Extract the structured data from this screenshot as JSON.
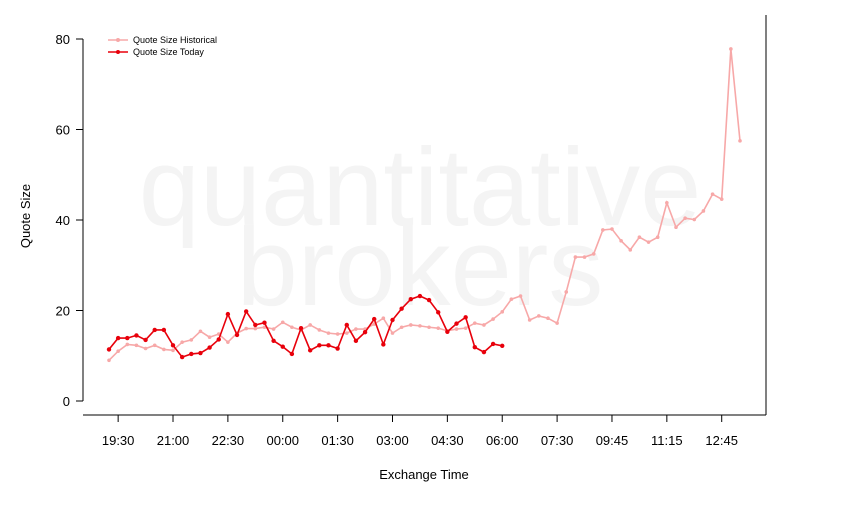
{
  "chart_data": {
    "type": "line",
    "watermark": [
      "quantitative",
      "brokers"
    ],
    "x_label": "Exchange Time",
    "y_label": "Quote Size",
    "categories": [
      null,
      "19:30",
      null,
      null,
      null,
      null,
      null,
      "21:00",
      null,
      null,
      null,
      null,
      null,
      "22:30",
      null,
      null,
      null,
      null,
      null,
      "00:00",
      null,
      null,
      null,
      null,
      null,
      "01:30",
      null,
      null,
      null,
      null,
      null,
      "03:00",
      null,
      null,
      null,
      null,
      null,
      "04:30",
      null,
      null,
      null,
      null,
      null,
      "06:00",
      null,
      null,
      null,
      null,
      null,
      "07:30",
      null,
      null,
      null,
      null,
      null,
      "09:45",
      null,
      null,
      null,
      null,
      null,
      "11:15",
      null,
      null,
      null,
      null,
      null,
      "12:45",
      null,
      null
    ],
    "series": [
      {
        "name": "Quote Size Historical",
        "color": "#f7a8a8",
        "values": [
          9,
          11,
          12.5,
          12.3,
          11.6,
          12.3,
          11.4,
          11.2,
          13,
          13.5,
          15.4,
          14.1,
          14.8,
          13,
          15,
          16,
          16,
          16.3,
          15.9,
          17.4,
          16.3,
          15.7,
          16.8,
          15.7,
          15,
          14.8,
          15,
          15.9,
          15.9,
          17,
          18.3,
          15,
          16.3,
          16.8,
          16.6,
          16.3,
          16.1,
          15.5,
          15.9,
          16.1,
          17.2,
          16.8,
          18.1,
          19.7,
          22.5,
          23.2,
          17.9,
          18.8,
          18.3,
          17.2,
          24.1,
          31.8,
          31.8,
          32.5,
          37.8,
          38,
          35.4,
          33.4,
          36.2,
          35.1,
          36.2,
          43.8,
          38.4,
          40.4,
          40.1,
          42,
          45.7,
          44.6,
          77.8,
          57.5
        ]
      },
      {
        "name": "Quote Size Today",
        "color": "#e8000b",
        "values": [
          11.4,
          13.9,
          13.9,
          14.5,
          13.5,
          15.7,
          15.7,
          12.3,
          9.7,
          10.4,
          10.6,
          11.8,
          13.6,
          19.2,
          14.6,
          19.8,
          16.8,
          17.3,
          13.3,
          12,
          10.4,
          16.1,
          11.2,
          12.3,
          12.3,
          11.6,
          16.8,
          13.3,
          15.2,
          18.1,
          12.5,
          17.9,
          20.4,
          22.5,
          23.2,
          22.3,
          19.6,
          15.3,
          17.1,
          18.5,
          11.9,
          10.8,
          12.6,
          12.2,
          null,
          null,
          null,
          null,
          null,
          null,
          null,
          null,
          null,
          null,
          null,
          null,
          null,
          null,
          null,
          null,
          null,
          null,
          null,
          null,
          null,
          null,
          null,
          null,
          null,
          null
        ]
      }
    ],
    "ylim": [
      0,
      80
    ],
    "yticks": [
      0,
      20,
      40,
      60,
      80
    ],
    "legend": "top-left"
  }
}
